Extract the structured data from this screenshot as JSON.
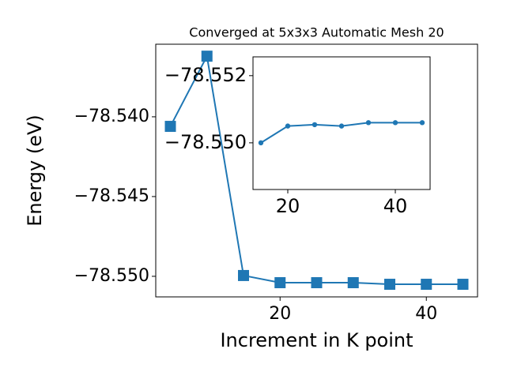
{
  "chart_data": [
    {
      "type": "line",
      "title": "Converged at 5x3x3 Automatic Mesh 20",
      "xlabel": "Increment in K point",
      "ylabel": "Energy (eV)",
      "x": [
        5,
        10,
        15,
        20,
        25,
        30,
        35,
        40,
        45
      ],
      "series": [
        {
          "name": "Energy",
          "color": "#1f77b4",
          "marker": "square",
          "values": [
            -78.5406,
            -78.5362,
            -78.54995,
            -78.5504,
            -78.5504,
            -78.5504,
            -78.5505,
            -78.5505,
            -78.5505
          ]
        }
      ],
      "xlim": [
        3,
        47
      ],
      "xticks": [
        20,
        40
      ],
      "ylim": [
        -78.55129,
        -78.53545
      ],
      "yticks": [
        {
          "value": -78.55,
          "label": "−78.550"
        },
        {
          "value": -78.545,
          "label": "−78.545"
        },
        {
          "value": -78.54,
          "label": "−78.540"
        }
      ]
    },
    {
      "type": "line",
      "x": [
        15,
        20,
        25,
        30,
        35,
        40,
        45
      ],
      "series": [
        {
          "name": "Energy",
          "color": "#1f77b4",
          "marker": "circle",
          "values": [
            -78.55,
            -78.5505,
            -78.55054,
            -78.5505,
            -78.5506,
            -78.5506,
            -78.5506
          ]
        }
      ],
      "xlim": [
        13.53,
        46.47
      ],
      "xticks": [
        20,
        40
      ],
      "ylim": [
        -78.54861,
        -78.55256
      ],
      "yticks": [
        {
          "value": -78.55,
          "label": "−78.550"
        },
        {
          "value": -78.552,
          "label": "−78.552"
        }
      ]
    }
  ]
}
